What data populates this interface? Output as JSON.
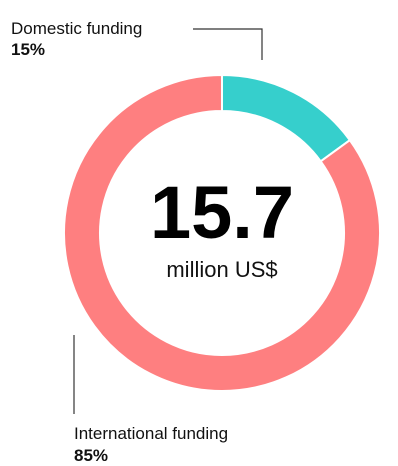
{
  "chart_data": {
    "type": "pie",
    "categories": [
      "Domestic funding",
      "International funding"
    ],
    "values": [
      15,
      85
    ],
    "value_labels": [
      "15%",
      "85%"
    ],
    "colors": [
      "#36cfcc",
      "#fe7f80"
    ],
    "center": {
      "value": "15.7",
      "unit": "million US$"
    },
    "donut": true
  }
}
